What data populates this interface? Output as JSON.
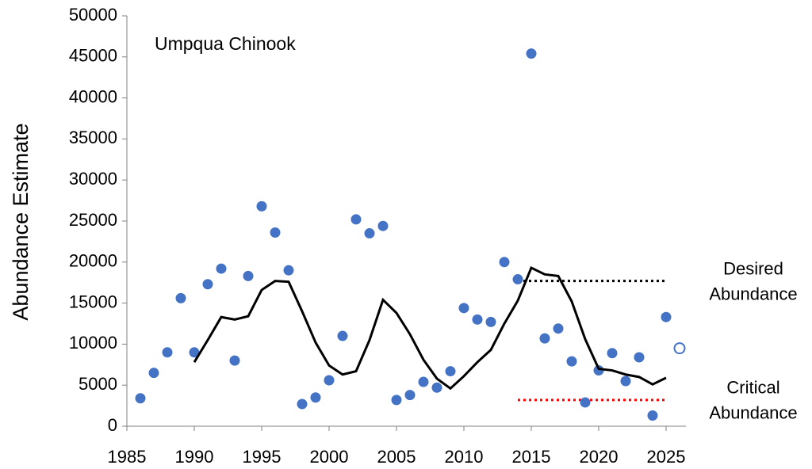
{
  "chart_data": {
    "type": "scatter",
    "title": "Umpqua Chinook",
    "y_label": "Abundance Estimate",
    "xlim": [
      1985,
      2027
    ],
    "ylim": [
      0,
      50000
    ],
    "xticks": [
      1985,
      1990,
      1995,
      2000,
      2005,
      2010,
      2015,
      2020,
      2025
    ],
    "yticks": [
      0,
      5000,
      10000,
      15000,
      20000,
      25000,
      30000,
      35000,
      40000,
      45000,
      50000
    ],
    "series": [
      {
        "type": "scatter",
        "color": "#4472c4",
        "filled": true,
        "x": [
          1986,
          1987,
          1988,
          1989,
          1990,
          1991,
          1992,
          1993,
          1994,
          1995,
          1996,
          1997,
          1998,
          1999,
          2000,
          2001,
          2002,
          2003,
          2004,
          2005,
          2006,
          2007,
          2008,
          2009,
          2010,
          2011,
          2012,
          2013,
          2014,
          2015,
          2016,
          2017,
          2018,
          2019,
          2020,
          2021,
          2022,
          2023,
          2024,
          2025
        ],
        "values": [
          3400,
          6500,
          9000,
          15600,
          9000,
          17300,
          19200,
          8000,
          18300,
          26800,
          23600,
          19000,
          2700,
          3500,
          5600,
          11000,
          25200,
          23500,
          24400,
          3200,
          3800,
          5400,
          4700,
          6700,
          14400,
          13000,
          12700,
          20000,
          17900,
          45400,
          10700,
          11900,
          7900,
          2900,
          6800,
          8900,
          5500,
          8400,
          1300,
          13300
        ]
      },
      {
        "type": "scatter",
        "color": "#4472c4",
        "filled": false,
        "x": [
          2026
        ],
        "values": [
          9500
        ]
      },
      {
        "type": "line",
        "color": "#000000",
        "x": [
          1990,
          1991,
          1992,
          1993,
          1994,
          1995,
          1996,
          1997,
          1998,
          1999,
          2000,
          2001,
          2002,
          2003,
          2004,
          2005,
          2006,
          2007,
          2008,
          2009,
          2010,
          2011,
          2012,
          2013,
          2014,
          2015,
          2016,
          2017,
          2018,
          2019,
          2020,
          2021,
          2022,
          2023,
          2024,
          2025
        ],
        "values": [
          7800,
          10500,
          13300,
          13000,
          13400,
          16600,
          17700,
          17600,
          14000,
          10200,
          7400,
          6300,
          6700,
          10500,
          15400,
          13800,
          11200,
          8100,
          5800,
          4600,
          6100,
          7800,
          9300,
          12500,
          15300,
          19300,
          18500,
          18300,
          15200,
          10600,
          7000,
          6800,
          6300,
          6000,
          5100,
          5900
        ]
      }
    ],
    "reference_lines": [
      {
        "value": 17700,
        "x": [
          2014,
          2025
        ],
        "color": "#000000",
        "label": [
          "Desired",
          "Abundance"
        ]
      },
      {
        "value": 3200,
        "x": [
          2014,
          2025
        ],
        "color": "#ff0000",
        "label": [
          "Critical",
          "Abundance"
        ]
      }
    ]
  }
}
